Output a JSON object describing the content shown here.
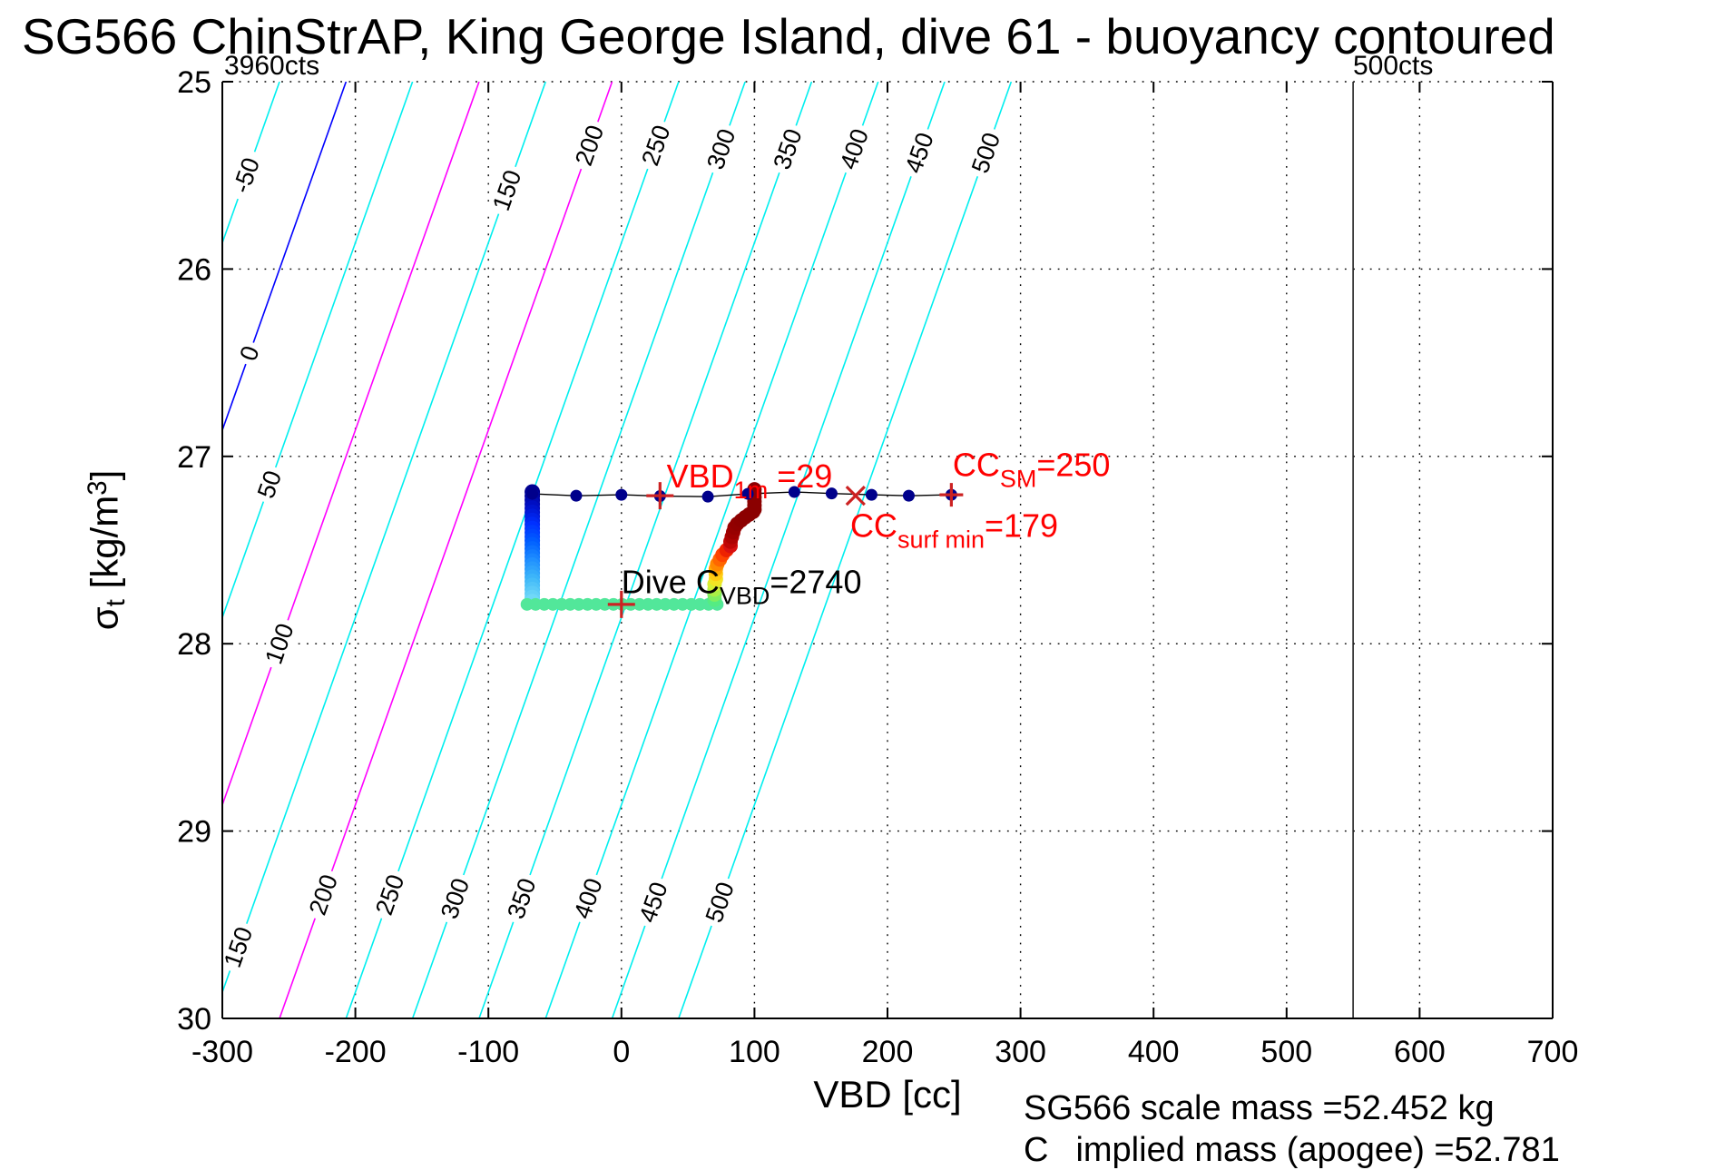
{
  "title": "SG566 ChinStrAP, King George Island, dive 61 - buoyancy contoured",
  "corner_labels": {
    "left": "3960cts",
    "right": "500cts"
  },
  "axes": {
    "xlabel": "VBD [cc]",
    "ylabel_parts": [
      "σ",
      "t",
      " [kg/m",
      "3",
      "]"
    ],
    "x_ticks": [
      -300,
      -200,
      -100,
      0,
      100,
      200,
      300,
      400,
      500,
      600,
      700
    ],
    "y_ticks": [
      25,
      26,
      27,
      28,
      29,
      30
    ],
    "xlim": [
      -300,
      700
    ],
    "ylim": [
      25,
      30
    ],
    "y_reversed": true,
    "grid": true
  },
  "footer": {
    "line1": "SG566 scale mass =52.452 kg",
    "line2_prefix": "C",
    "line2_rest": "implied mass (apogee) =52.781"
  },
  "chart_data": {
    "type": "scatter",
    "title": "SG566 ChinStrAP, King George Island, dive 61 - buoyancy contoured",
    "xlabel": "VBD [cc]",
    "ylabel": "sigma_t [kg/m3]",
    "xlim": [
      -300,
      700
    ],
    "ylim": [
      25,
      30
    ],
    "y_reversed": true,
    "contours": {
      "comment": "buoyancy contour V: straight line, crosses sigma=25 at x=V-207, dx/dsigma=-50",
      "values": [
        -50,
        0,
        50,
        100,
        150,
        200,
        250,
        300,
        350,
        400,
        450,
        500
      ],
      "x_top_offset": -207,
      "dx_per_sigma": -50,
      "color_default": "#00EFEF",
      "color_overrides": {
        "0": "#0000FF",
        "100": "#FF00FF",
        "200": "#FF00FF"
      },
      "labels": [
        [
          -50,
          25.5
        ],
        [
          0,
          26.45
        ],
        [
          50,
          27.15
        ],
        [
          100,
          28.0
        ],
        [
          150,
          25.58
        ],
        [
          200,
          25.34
        ],
        [
          250,
          25.34
        ],
        [
          300,
          25.36
        ],
        [
          350,
          25.36
        ],
        [
          400,
          25.36
        ],
        [
          450,
          25.38
        ],
        [
          500,
          25.38
        ],
        [
          150,
          29.62
        ],
        [
          200,
          29.34
        ],
        [
          250,
          29.34
        ],
        [
          300,
          29.36
        ],
        [
          350,
          29.36
        ],
        [
          400,
          29.36
        ],
        [
          450,
          29.38
        ],
        [
          500,
          29.38
        ]
      ]
    },
    "vline_x": 550,
    "series": {
      "descent_bar": {
        "x": -67,
        "sigma_from": 27.19,
        "sigma_to": 27.775,
        "n": 28,
        "r": 8.5,
        "colors": [
          "#000090",
          "#0010C8",
          "#0030FF",
          "#0060FF",
          "#2090FF",
          "#40B8F8",
          "#70D8F8"
        ]
      },
      "bottom_row": {
        "sigma": 27.79,
        "x_from": -71,
        "x_to": 72,
        "n": 23,
        "r": 7,
        "color": "#52E79A"
      },
      "climb_trail": {
        "r": 8,
        "points": [
          [
            70,
            27.765,
            "#55EC83"
          ],
          [
            70,
            27.737,
            "#7FEF60"
          ],
          [
            70,
            27.71,
            "#AAF046"
          ],
          [
            70,
            27.682,
            "#D6EF33"
          ],
          [
            71,
            27.655,
            "#F2E424"
          ],
          [
            71,
            27.627,
            "#FFCC12"
          ],
          [
            71,
            27.6,
            "#FFAA00"
          ],
          [
            72,
            27.575,
            "#FF8800"
          ],
          [
            74,
            27.55,
            "#FF6600"
          ],
          [
            76,
            27.525,
            "#FF4400"
          ],
          [
            79,
            27.5,
            "#EE2200"
          ],
          [
            82,
            27.478,
            "#D81010"
          ],
          [
            82,
            27.455,
            "#C00505"
          ],
          [
            83,
            27.43,
            "#AE0202"
          ],
          [
            84,
            27.405,
            "#A00000"
          ],
          [
            85,
            27.38,
            "#980000"
          ],
          [
            87,
            27.36,
            "#920000"
          ],
          [
            90,
            27.342,
            "#8E0000"
          ],
          [
            93,
            27.325,
            "#8C0000"
          ],
          [
            96,
            27.31,
            "#8B0000"
          ],
          [
            99,
            27.296,
            "#8B0000"
          ],
          [
            100,
            27.283,
            "#8B0000"
          ],
          [
            100,
            27.262,
            "#8B0000"
          ],
          [
            100,
            27.24,
            "#8B0000"
          ],
          [
            100,
            27.218,
            "#8B0000"
          ],
          [
            100,
            27.196,
            "#8B0000"
          ],
          [
            100,
            27.176,
            "#8B0000"
          ]
        ]
      },
      "surface_row": {
        "color": "#00008B",
        "r": 6.5,
        "points": [
          [
            -67,
            27.2
          ],
          [
            -34,
            27.21
          ],
          [
            0,
            27.205
          ],
          [
            29,
            27.212
          ],
          [
            65,
            27.215
          ],
          [
            95,
            27.2
          ],
          [
            130,
            27.19
          ],
          [
            158,
            27.198
          ],
          [
            188,
            27.205
          ],
          [
            216,
            27.21
          ],
          [
            248,
            27.205
          ]
        ]
      },
      "markers": {
        "color": "#CC2222",
        "items": [
          {
            "type": "plus",
            "x": 29,
            "sigma": 27.21,
            "size": 15
          },
          {
            "type": "plus",
            "x": 248,
            "sigma": 27.205,
            "size": 13
          },
          {
            "type": "x",
            "x": 176,
            "sigma": 27.21,
            "size": 10
          },
          {
            "type": "plus",
            "x": 0,
            "sigma": 27.79,
            "size": 15
          }
        ]
      }
    },
    "annotations": [
      {
        "name": "vbd-1m-label",
        "color": "#FF0000",
        "x": 34,
        "sigma": 27.165,
        "parts": [
          [
            "VBD",
            0
          ],
          [
            "1m",
            1
          ],
          [
            " =29",
            0
          ]
        ]
      },
      {
        "name": "cc-sm-label",
        "color": "#FF0000",
        "x": 249,
        "sigma": 27.105,
        "parts": [
          [
            "CC",
            0
          ],
          [
            "SM",
            1
          ],
          [
            "=250",
            0
          ]
        ]
      },
      {
        "name": "cc-surf-min-label",
        "color": "#FF0000",
        "x": 172,
        "sigma": 27.43,
        "parts": [
          [
            "CC",
            0
          ],
          [
            "surf min",
            1
          ],
          [
            "=179",
            0
          ]
        ]
      },
      {
        "name": "dive-cvbd-label",
        "color": "#000000",
        "x": 0,
        "sigma": 27.73,
        "parts": [
          [
            "Dive C",
            0
          ],
          [
            "VBD",
            1
          ],
          [
            "=2740",
            0
          ]
        ]
      }
    ]
  }
}
